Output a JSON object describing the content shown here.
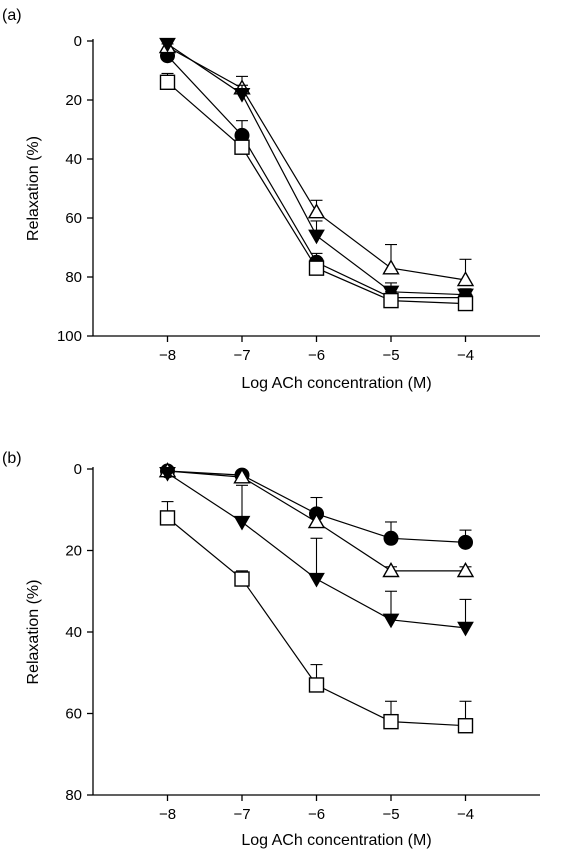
{
  "chart_data": [
    {
      "type": "line",
      "panel_label": "(a)",
      "xlabel": "Log ACh concentration (M)",
      "ylabel": "Relaxation (%)",
      "x": [
        -8,
        -7,
        -6,
        -5,
        -4
      ],
      "x_tick_labels": [
        "−8",
        "−7",
        "−6",
        "−5",
        "−4"
      ],
      "xlim": [
        -9,
        -3
      ],
      "ylim": [
        0,
        100
      ],
      "y_inverted": true,
      "y_ticks": [
        0,
        20,
        40,
        60,
        80,
        100
      ],
      "grid": false,
      "series": [
        {
          "marker": "filled-circle",
          "values": [
            5,
            32,
            75,
            87,
            87
          ],
          "errors": [
            2,
            5,
            3,
            2,
            2
          ]
        },
        {
          "marker": "open-triangle",
          "values": [
            2,
            16,
            58,
            77,
            81
          ],
          "errors": [
            1,
            4,
            4,
            8,
            7
          ]
        },
        {
          "marker": "filled-triangle-down",
          "values": [
            1,
            18,
            66,
            85,
            86
          ],
          "errors": [
            1,
            3,
            5,
            3,
            2
          ]
        },
        {
          "marker": "open-square",
          "values": [
            14,
            36,
            77,
            88,
            89
          ],
          "errors": [
            3,
            4,
            3,
            2,
            2
          ]
        }
      ]
    },
    {
      "type": "line",
      "panel_label": "(b)",
      "xlabel": "Log ACh concentration (M)",
      "ylabel": "Relaxation (%)",
      "x": [
        -8,
        -7,
        -6,
        -5,
        -4
      ],
      "x_tick_labels": [
        "−8",
        "−7",
        "−6",
        "−5",
        "−4"
      ],
      "xlim": [
        -9,
        -3
      ],
      "ylim": [
        0,
        80
      ],
      "y_inverted": true,
      "y_ticks": [
        0,
        20,
        40,
        60,
        80
      ],
      "grid": false,
      "series": [
        {
          "marker": "filled-circle",
          "values": [
            0.5,
            1.5,
            11,
            17,
            18
          ],
          "errors": [
            0.5,
            0.5,
            4,
            4,
            3
          ]
        },
        {
          "marker": "open-triangle",
          "values": [
            0.5,
            2,
            13,
            25,
            25
          ],
          "errors": [
            0.5,
            1,
            3,
            1,
            1
          ]
        },
        {
          "marker": "filled-triangle-down",
          "values": [
            1,
            13,
            27,
            37,
            39
          ],
          "errors": [
            0.5,
            9,
            10,
            7,
            7
          ]
        },
        {
          "marker": "open-square",
          "values": [
            12,
            27,
            53,
            62,
            63
          ],
          "errors": [
            4,
            2,
            5,
            5,
            6
          ]
        }
      ]
    }
  ]
}
